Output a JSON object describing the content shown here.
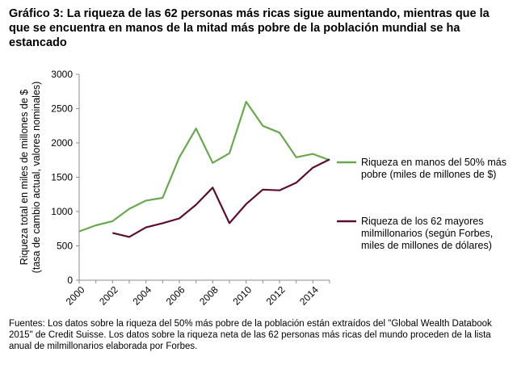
{
  "title": "Gráfico 3: La riqueza de las 62 personas más ricas sigue aumentando, mientras que la que se encuentra en manos de la mitad más pobre de la población mundial se ha estancado",
  "source_note": "Fuentes: Los datos sobre la riqueza del 50% más pobre de la población están extraídos del \"Global Wealth Databook 2015\" de Credit Suisse. Los datos sobre la riqueza neta de las 62 personas más ricas del mundo proceden de la lista anual de milmillonarios elaborada por Forbes.",
  "colors": {
    "poorest": "#6aa84f",
    "richest": "#5b0f2e",
    "axis": "#8c8c8c"
  },
  "chart_data": {
    "type": "line",
    "title": "",
    "xlabel": "",
    "ylabel_lines": [
      "Riqueza total en miles de millones de $",
      "(tasa de cambio actual, valores nominales)"
    ],
    "ylim": [
      0,
      3000
    ],
    "yticks": [
      0,
      500,
      1000,
      1500,
      2000,
      2500,
      3000
    ],
    "xlim": [
      2000,
      2015
    ],
    "xticks": [
      2000,
      2002,
      2004,
      2006,
      2008,
      2010,
      2012,
      2014
    ],
    "x": [
      2000,
      2001,
      2002,
      2003,
      2004,
      2005,
      2006,
      2007,
      2008,
      2009,
      2010,
      2011,
      2012,
      2013,
      2014,
      2015
    ],
    "series": [
      {
        "name": "poorest",
        "legend": [
          "Riqueza en manos del 50% más",
          "pobre (miles de millones de $)"
        ],
        "values": [
          710,
          800,
          860,
          1040,
          1160,
          1200,
          1790,
          2210,
          1710,
          1850,
          2600,
          2250,
          2150,
          1790,
          1840,
          1750
        ]
      },
      {
        "name": "richest",
        "legend": [
          "Riqueza de los 62 mayores",
          "milmillonarios (según Forbes,",
          "miles de millones de dólares)"
        ],
        "values": [
          null,
          null,
          690,
          630,
          770,
          830,
          900,
          1100,
          1350,
          830,
          1110,
          1320,
          1310,
          1420,
          1640,
          1760
        ]
      }
    ]
  }
}
